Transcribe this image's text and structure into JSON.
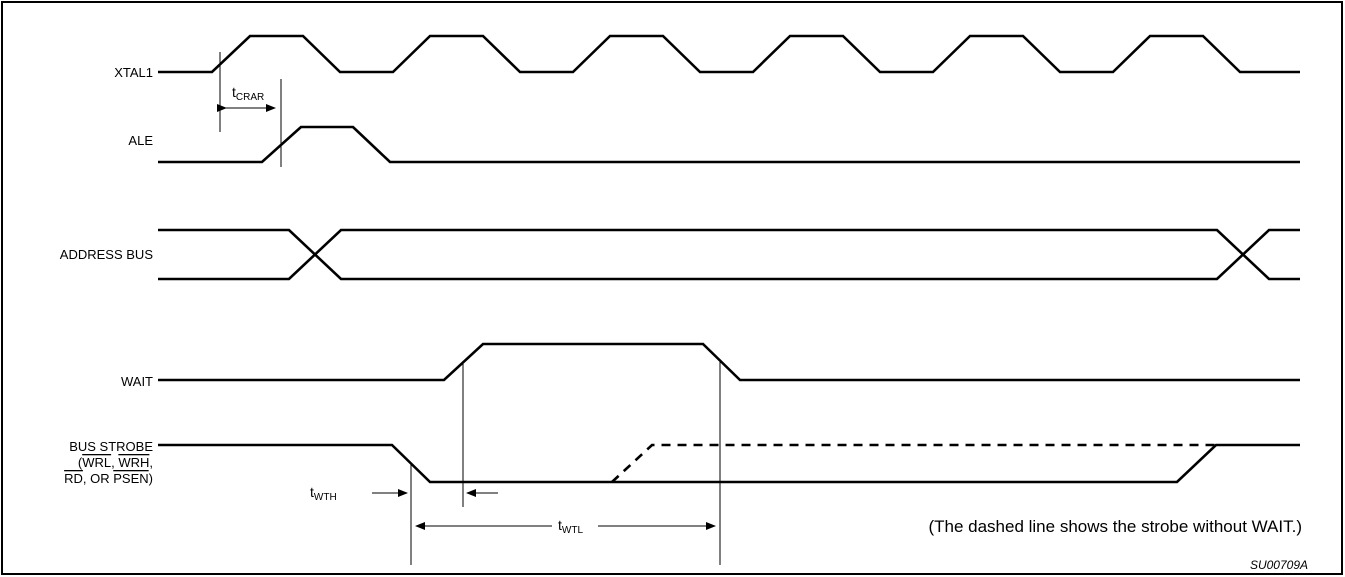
{
  "signals": {
    "xtal1": "XTAL1",
    "ale": "ALE",
    "address_bus": "ADDRESS BUS",
    "wait": "WAIT",
    "bus_strobe": {
      "line1": "BUS STROBE",
      "line2_open": "(",
      "line2_wrl": "WRL",
      "line2_sep": ", ",
      "line2_wrh": "WRH",
      "line2_close": ",",
      "line3_rd": "RD",
      "line3_mid": ", OR ",
      "line3_psen": "PSEN",
      "line3_close": ")"
    }
  },
  "timings": {
    "t_crar": {
      "base": "t",
      "sub": "CRAR"
    },
    "t_wth": {
      "base": "t",
      "sub": "WTH"
    },
    "t_wtl": {
      "base": "t",
      "sub": "WTL"
    }
  },
  "note": "(The dashed line shows the strobe without WAIT.)",
  "figure_code": "SU00709A"
}
